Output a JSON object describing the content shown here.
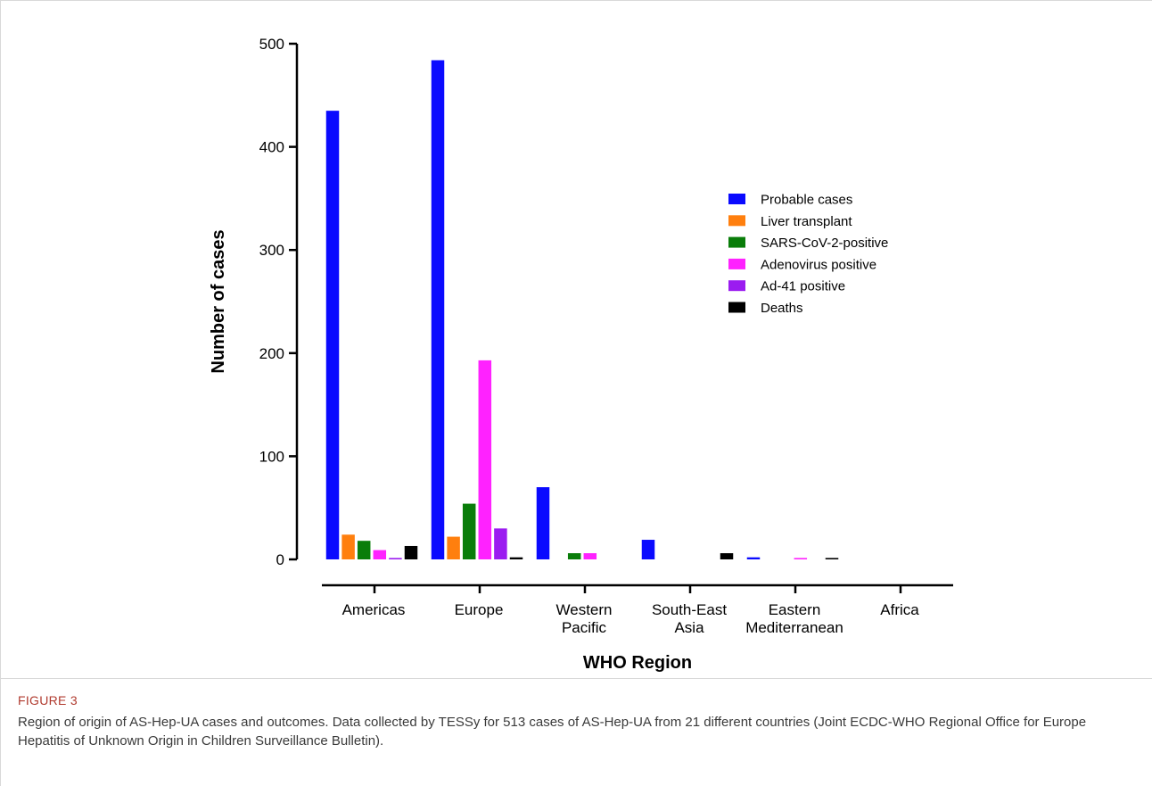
{
  "figure": {
    "label": "FIGURE 3",
    "caption": "Region of origin of AS-Hep-UA cases and outcomes. Data collected by TESSy for 513 cases of AS-Hep-UA from 21 different countries (Joint ECDC-WHO Regional Office for Europe Hepatitis of Unknown Origin in Children Surveillance Bulletin)."
  },
  "chart_data": {
    "type": "bar",
    "xlabel": "WHO Region",
    "ylabel": "Number of cases",
    "ylim": [
      0,
      500
    ],
    "yticks": [
      0,
      100,
      200,
      300,
      400,
      500
    ],
    "grid": false,
    "legend_position": "right",
    "categories": [
      [
        "Americas"
      ],
      [
        "Europe"
      ],
      [
        "Western",
        "Pacific"
      ],
      [
        "South-East",
        "Asia"
      ],
      [
        "Eastern",
        "Mediterranean"
      ],
      [
        "Africa"
      ]
    ],
    "series": [
      {
        "name": "Probable cases",
        "color": "#0a0aff",
        "values": [
          435,
          484,
          70,
          19,
          2,
          0
        ]
      },
      {
        "name": "Liver transplant",
        "color": "#ff7f0e",
        "values": [
          24,
          22,
          0,
          0,
          0,
          0
        ]
      },
      {
        "name": "SARS-CoV-2-positive",
        "color": "#0a7d0a",
        "values": [
          18,
          54,
          6,
          0,
          0,
          0
        ]
      },
      {
        "name": "Adenovirus positive",
        "color": "#ff22ff",
        "values": [
          9,
          193,
          6,
          0,
          1,
          0
        ]
      },
      {
        "name": "Ad-41 positive",
        "color": "#9b1cf0",
        "values": [
          1,
          30,
          0,
          0,
          0,
          0
        ]
      },
      {
        "name": "Deaths",
        "color": "#000000",
        "values": [
          13,
          2,
          0,
          6,
          1,
          0
        ]
      }
    ]
  }
}
